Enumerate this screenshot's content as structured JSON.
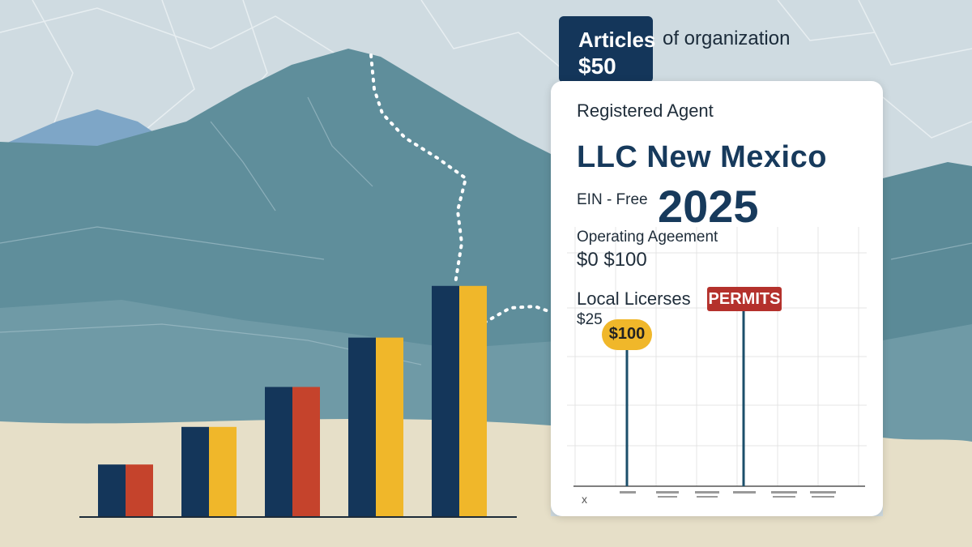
{
  "articles": {
    "title": "Articles",
    "price": "$50",
    "subtitle": "of organization"
  },
  "card": {
    "registered_agent": "Registered Agent",
    "title": "LLC New Mexico",
    "ein": "EIN - Free",
    "year": "2025",
    "operating": "Operating  Ageement",
    "operating_price": "$0  $100",
    "local": "Local Licerses",
    "local_price": "$25",
    "permits": "PERMITS",
    "bubble_price": "$100",
    "axis_mark": "x"
  },
  "bar_chart": {
    "groups": [
      {
        "left_color": "#14365a",
        "right_color": "#c5432c",
        "level": 0.22
      },
      {
        "left_color": "#14365a",
        "right_color": "#f0b72a",
        "level": 0.38
      },
      {
        "left_color": "#14365a",
        "right_color": "#c5432c",
        "level": 0.55
      },
      {
        "left_color": "#14365a",
        "right_color": "#f0b72a",
        "level": 0.76
      },
      {
        "left_color": "#14365a",
        "right_color": "#f0b72a",
        "level": 0.98
      }
    ]
  },
  "colors": {
    "navy": "#14365a",
    "mountain": "#5b8a97",
    "sky": "#c9d7de",
    "sand": "#e6dfc8",
    "gold": "#f0b72a",
    "red": "#b4312c"
  }
}
